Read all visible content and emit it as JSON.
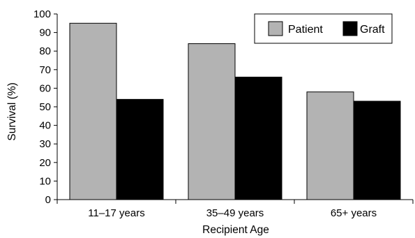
{
  "chart_data": {
    "type": "bar",
    "categories": [
      "11–17 years",
      "35–49 years",
      "65+ years"
    ],
    "series": [
      {
        "name": "Patient",
        "values": [
          95,
          84,
          58
        ],
        "color": "#b3b3b3"
      },
      {
        "name": "Graft",
        "values": [
          54,
          66,
          53
        ],
        "color": "#000000"
      }
    ],
    "title": "",
    "xlabel": "Recipient Age",
    "ylabel": "Survival (%)",
    "ylim": [
      0,
      100
    ],
    "yticks": [
      0,
      10,
      20,
      30,
      40,
      50,
      60,
      70,
      80,
      90,
      100
    ],
    "grid": false,
    "legend": "top-right"
  }
}
